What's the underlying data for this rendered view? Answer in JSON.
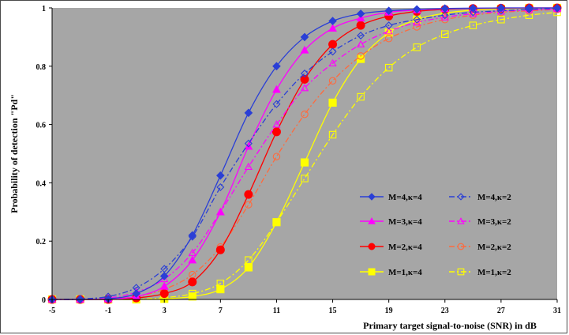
{
  "chart_data": {
    "type": "line",
    "xlabel": "Primary target signal-to-noise  (SNR) in dB",
    "ylabel": "Probability of detection \"Pd\"",
    "xlim": [
      -5,
      31
    ],
    "ylim": [
      0,
      1
    ],
    "x_ticks": [
      -5,
      -1,
      3,
      7,
      11,
      15,
      19,
      23,
      27,
      31
    ],
    "y_ticks": [
      0,
      0.2,
      0.4,
      0.6,
      0.8,
      1
    ],
    "x_tick_labels": [
      "-5",
      "-1",
      "3",
      "7",
      "11",
      "15",
      "19",
      "23",
      "27",
      "31"
    ],
    "y_tick_labels": [
      "0",
      "0.2",
      "0.4",
      "0.6",
      "0.8",
      "1"
    ],
    "plot_background": "#a6a6a6",
    "grid": false,
    "legend_position": "bottom-right",
    "series": [
      {
        "name": "M=4,κ=4",
        "color": "#2a3fd6",
        "marker": "diamond",
        "filled": true,
        "dash": "solid",
        "x": [
          -5,
          -3,
          -1,
          1,
          3,
          5,
          7,
          9,
          11,
          13,
          15,
          17,
          19,
          21,
          23,
          25,
          27,
          29,
          31
        ],
        "values": [
          0,
          0,
          0.002,
          0.02,
          0.08,
          0.22,
          0.425,
          0.64,
          0.8,
          0.9,
          0.955,
          0.98,
          0.99,
          0.995,
          0.998,
          0.999,
          1,
          1,
          1
        ]
      },
      {
        "name": "M=4,κ=2",
        "color": "#2a3fd6",
        "marker": "diamond",
        "filled": false,
        "dash": "dashdot",
        "x": [
          -5,
          -3,
          -1,
          1,
          3,
          5,
          7,
          9,
          11,
          13,
          15,
          17,
          19,
          21,
          23,
          25,
          27,
          29,
          31
        ],
        "values": [
          0,
          0.002,
          0.01,
          0.04,
          0.105,
          0.215,
          0.385,
          0.535,
          0.67,
          0.775,
          0.85,
          0.905,
          0.94,
          0.96,
          0.975,
          0.985,
          0.99,
          0.995,
          0.998
        ]
      },
      {
        "name": "M=3,κ=4",
        "color": "#ff00ff",
        "marker": "triangle",
        "filled": true,
        "dash": "solid",
        "x": [
          -5,
          -3,
          -1,
          1,
          3,
          5,
          7,
          9,
          11,
          13,
          15,
          17,
          19,
          21,
          23,
          25,
          27,
          29,
          31
        ],
        "values": [
          0,
          0,
          0.001,
          0.01,
          0.045,
          0.135,
          0.3,
          0.525,
          0.72,
          0.855,
          0.93,
          0.965,
          0.985,
          0.993,
          0.997,
          0.999,
          1,
          1,
          1
        ]
      },
      {
        "name": "M=3,κ=2",
        "color": "#ff00ff",
        "marker": "triangle",
        "filled": false,
        "dash": "dashdot",
        "x": [
          -5,
          -3,
          -1,
          1,
          3,
          5,
          7,
          9,
          11,
          13,
          15,
          17,
          19,
          21,
          23,
          25,
          27,
          29,
          31
        ],
        "values": [
          0,
          0,
          0.005,
          0.025,
          0.07,
          0.16,
          0.3,
          0.455,
          0.6,
          0.725,
          0.81,
          0.875,
          0.92,
          0.95,
          0.968,
          0.98,
          0.988,
          0.993,
          0.996
        ]
      },
      {
        "name": "M=2,κ=4",
        "color": "#ff0000",
        "marker": "circle",
        "filled": true,
        "dash": "solid",
        "x": [
          -5,
          -3,
          -1,
          1,
          3,
          5,
          7,
          9,
          11,
          13,
          15,
          17,
          19,
          21,
          23,
          25,
          27,
          29,
          31
        ],
        "values": [
          0,
          0,
          0,
          0.005,
          0.02,
          0.06,
          0.17,
          0.36,
          0.575,
          0.755,
          0.875,
          0.94,
          0.972,
          0.988,
          0.995,
          0.998,
          0.999,
          1,
          1
        ]
      },
      {
        "name": "M=2,κ=2",
        "color": "#ff6a3d",
        "marker": "circle",
        "filled": false,
        "dash": "dashdot",
        "x": [
          -5,
          -3,
          -1,
          1,
          3,
          5,
          7,
          9,
          11,
          13,
          15,
          17,
          19,
          21,
          23,
          25,
          27,
          29,
          31
        ],
        "values": [
          0,
          0,
          0.002,
          0.01,
          0.035,
          0.085,
          0.18,
          0.325,
          0.49,
          0.635,
          0.75,
          0.835,
          0.895,
          0.935,
          0.96,
          0.975,
          0.985,
          0.99,
          0.995
        ]
      },
      {
        "name": "M=1,κ=4",
        "color": "#ffff00",
        "marker": "square",
        "filled": true,
        "dash": "solid",
        "x": [
          -5,
          -3,
          -1,
          1,
          3,
          5,
          7,
          9,
          11,
          13,
          15,
          17,
          19,
          21,
          23,
          25,
          27,
          29,
          31
        ],
        "values": [
          0,
          0,
          0,
          0,
          0.002,
          0.01,
          0.035,
          0.11,
          0.265,
          0.47,
          0.675,
          0.825,
          0.915,
          0.96,
          0.982,
          0.992,
          0.997,
          0.999,
          1
        ]
      },
      {
        "name": "M=1,κ=2",
        "color": "#ffff00",
        "marker": "square",
        "filled": false,
        "dash": "dashdot",
        "x": [
          -5,
          -3,
          -1,
          1,
          3,
          5,
          7,
          9,
          11,
          13,
          15,
          17,
          19,
          21,
          23,
          25,
          27,
          29,
          31
        ],
        "values": [
          0,
          0,
          0,
          0.001,
          0.006,
          0.02,
          0.055,
          0.135,
          0.265,
          0.415,
          0.565,
          0.695,
          0.795,
          0.865,
          0.91,
          0.94,
          0.96,
          0.975,
          0.985
        ]
      }
    ]
  }
}
